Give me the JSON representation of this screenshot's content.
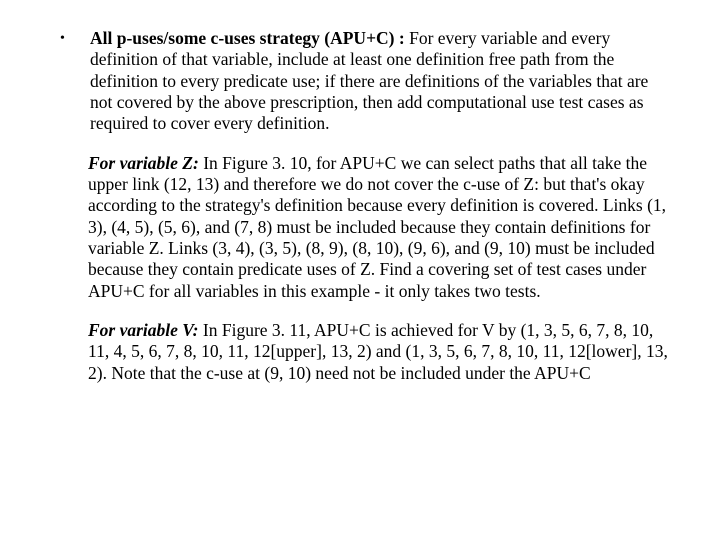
{
  "colors": {
    "text": "#000000",
    "background": "#ffffff"
  },
  "typography": {
    "font_family": "Times New Roman",
    "base_size_pt": 13,
    "line_height": 1.22
  },
  "bullet": {
    "glyph": "•"
  },
  "sec1": {
    "lead_bold": "All p-uses/some c-uses strategy (APU+C) : ",
    "lead_rest": "For every variable and every definition of that variable, include at least one definition free path from the definition to every predicate use; if there are definitions of the variables that are not covered by the above prescription, then add computational use test cases as required to cover every definition."
  },
  "sec2": {
    "lead_bi": "For variable Z: ",
    "rest": "In Figure 3. 10, for APU+C we can select paths that all take the upper link (12, 13) and therefore we do not cover the c-use of Z: but that's okay according to the strategy's definition because every definition is covered. Links (1, 3), (4, 5), (5, 6), and (7, 8) must be included because they contain definitions for variable Z. Links (3, 4), (3, 5), (8, 9), (8, 10), (9, 6), and (9, 10) must be included because they contain predicate uses of Z. Find a covering set of test cases under APU+C for all variables in this example - it only takes two tests."
  },
  "sec3": {
    "lead_bi": "For variable V: ",
    "rest": "In Figure 3. 11, APU+C is achieved for V by (1, 3, 5, 6, 7, 8, 10, 11, 4, 5, 6, 7, 8, 10, 11, 12[upper], 13, 2) and (1, 3, 5, 6, 7, 8, 10, 11, 12[lower], 13, 2). Note that the c-use at (9, 10) need not be included under the APU+C"
  }
}
